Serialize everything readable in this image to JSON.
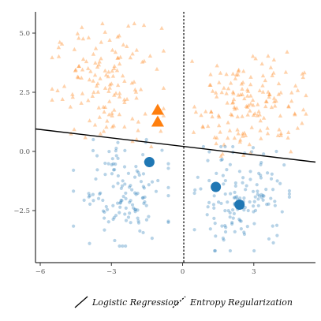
{
  "chart_data": {
    "type": "scatter",
    "xlim": [
      -6.2,
      5.6
    ],
    "ylim": [
      -4.7,
      5.9
    ],
    "x_ticks": [
      -6,
      -3,
      0,
      3
    ],
    "y_ticks": [
      5.0,
      2.5,
      0.0,
      -2.5
    ],
    "x_tick_labels": [
      "−6",
      "−3",
      "0",
      "3"
    ],
    "y_tick_labels": [
      "5.0",
      "2.5",
      "0.0",
      "−2.5"
    ],
    "grid": false,
    "legend_position": "bottom",
    "classes": [
      {
        "marker": "triangle",
        "color": "#ff7f0e",
        "cluster_regions": [
          {
            "x": [
              -5.5,
              -0.8
            ],
            "y": [
              0.2,
              5.4
            ]
          },
          {
            "x": [
              0.4,
              5.2
            ],
            "y": [
              -0.2,
              4.3
            ]
          }
        ],
        "highlighted_points": [
          [
            -1.05,
            1.75
          ],
          [
            -1.05,
            1.25
          ]
        ]
      },
      {
        "marker": "circle",
        "color": "#1f77b4",
        "cluster_regions": [
          {
            "x": [
              -4.6,
              -0.6
            ],
            "y": [
              -4.0,
              0.5
            ]
          },
          {
            "x": [
              0.5,
              4.5
            ],
            "y": [
              -4.2,
              0.2
            ]
          }
        ],
        "highlighted_points": [
          [
            -1.4,
            -0.45
          ],
          [
            1.4,
            -1.5
          ],
          [
            2.4,
            -2.25
          ]
        ]
      }
    ],
    "lines": [
      {
        "name": "Logistic Regression",
        "style": "solid",
        "color": "#000000",
        "points": [
          [
            -6.2,
            0.95
          ],
          [
            5.6,
            -0.45
          ]
        ]
      },
      {
        "name": "Entropy Regularization",
        "style": "dotted",
        "color": "#000000",
        "points": [
          [
            0.05,
            5.9
          ],
          [
            0.05,
            -4.7
          ]
        ]
      }
    ]
  },
  "legend": {
    "items": [
      {
        "label": "Logistic Regression",
        "style": "solid"
      },
      {
        "label": "Entropy Regularization",
        "style": "dotted"
      }
    ]
  }
}
